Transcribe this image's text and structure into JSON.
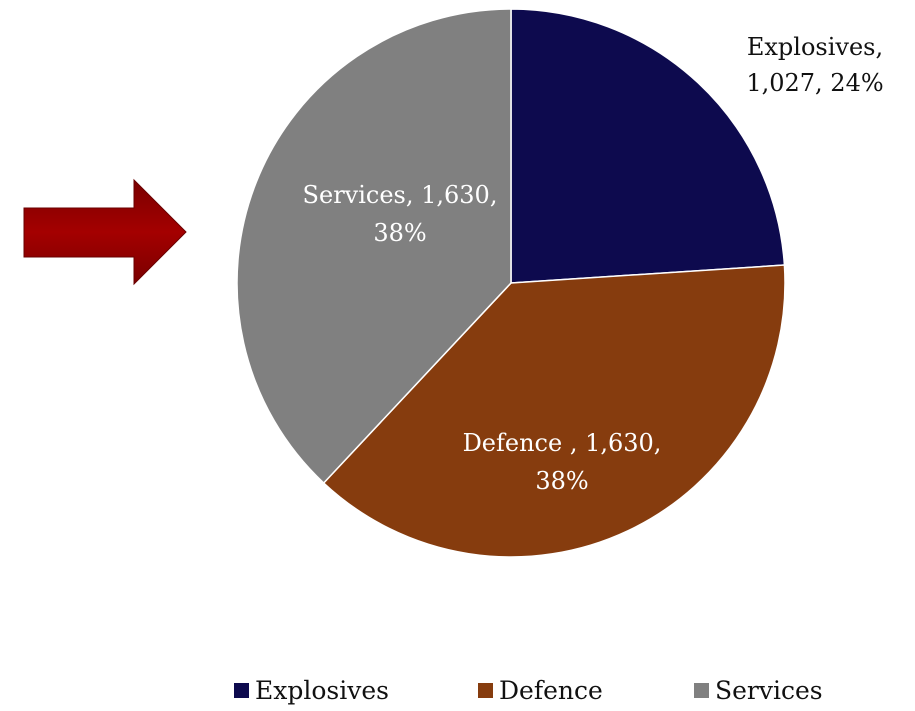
{
  "chart_data": {
    "type": "pie",
    "title": "",
    "slices": [
      {
        "label": "Explosives",
        "value": 1027,
        "value_text": "1,027",
        "percent": "24%",
        "color": "#0d0a4e",
        "label_color": "#111111",
        "data_label_line1": "Explosives,",
        "data_label_line2": "1,027, 24%"
      },
      {
        "label": "Defence",
        "value": 1630,
        "value_text": "1,630",
        "percent": "38%",
        "color": "#863c0e",
        "label_color": "#ffffff",
        "data_label_line1": "Defence , 1,630,",
        "data_label_line2": "38%"
      },
      {
        "label": "Services",
        "value": 1630,
        "value_text": "1,630",
        "percent": "38%",
        "color": "#808080",
        "label_color": "#ffffff",
        "data_label_line1": "Services, 1,630,",
        "data_label_line2": "38%"
      }
    ],
    "legend": {
      "position": "bottom",
      "entries": [
        "Explosives",
        "Defence",
        "Services"
      ]
    }
  },
  "decorations": {
    "arrow": {
      "color": "#990000",
      "direction": "right",
      "icon": "arrow-right-icon"
    }
  }
}
